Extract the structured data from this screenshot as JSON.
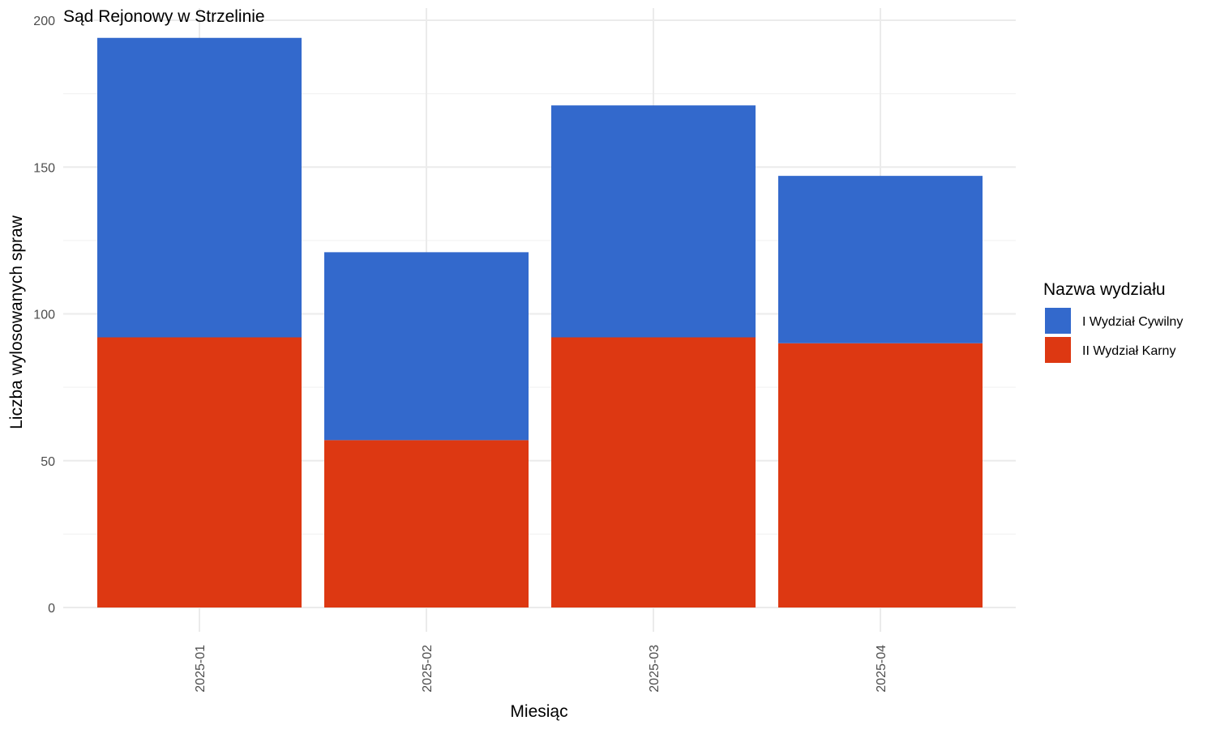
{
  "chart_data": {
    "type": "bar",
    "stacked": true,
    "title": "Sąd Rejonowy w Strzelinie",
    "xlabel": "Miesiąc",
    "ylabel": "Liczba wylosowanych spraw",
    "categories": [
      "2025-01",
      "2025-02",
      "2025-03",
      "2025-04"
    ],
    "series": [
      {
        "name": "II Wydział Karny",
        "values": [
          92,
          57,
          92,
          90
        ],
        "color": "#dd3812"
      },
      {
        "name": "I Wydział Cywilny",
        "values": [
          102,
          64,
          79,
          57
        ],
        "color": "#3369cc"
      }
    ],
    "ylim": [
      0,
      200
    ],
    "yticks": [
      0,
      50,
      100,
      150,
      200
    ],
    "grid": true,
    "legend": {
      "title": "Nazwa wydziału",
      "position": "right",
      "items": [
        "I Wydział Cywilny",
        "II Wydział Karny"
      ]
    }
  }
}
